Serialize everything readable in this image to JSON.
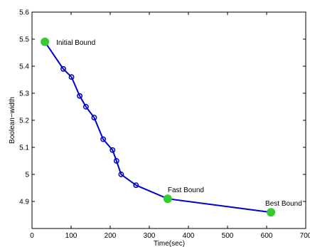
{
  "chart_data": {
    "type": "line",
    "title": "",
    "xlabel": "Time(sec)",
    "ylabel": "Boolean−width",
    "xlim": [
      0,
      700
    ],
    "ylim": [
      4.8,
      5.6
    ],
    "xticks": [
      "0",
      "100",
      "200",
      "300",
      "400",
      "500",
      "600",
      "700"
    ],
    "yticks": [
      "4.9",
      "5",
      "5.1",
      "5.2",
      "5.3",
      "5.4",
      "5.5",
      "5.6"
    ],
    "grid": false,
    "series": [
      {
        "color": "#0000cc",
        "marker": "circle",
        "x": [
          33,
          80,
          101,
          122,
          138,
          159,
          182,
          206,
          216,
          228,
          266,
          347,
          611
        ],
        "y": [
          5.49,
          5.39,
          5.36,
          5.29,
          5.25,
          5.21,
          5.13,
          5.09,
          5.05,
          5.0,
          4.96,
          4.91,
          4.86
        ]
      }
    ],
    "highlight_color": "#33cc33",
    "annotations": [
      {
        "text": "Initial Bound",
        "x": 33,
        "y": 5.49
      },
      {
        "text": "Fast Bound",
        "x": 347,
        "y": 4.91
      },
      {
        "text": "Best Bound",
        "x": 611,
        "y": 4.86
      }
    ]
  }
}
